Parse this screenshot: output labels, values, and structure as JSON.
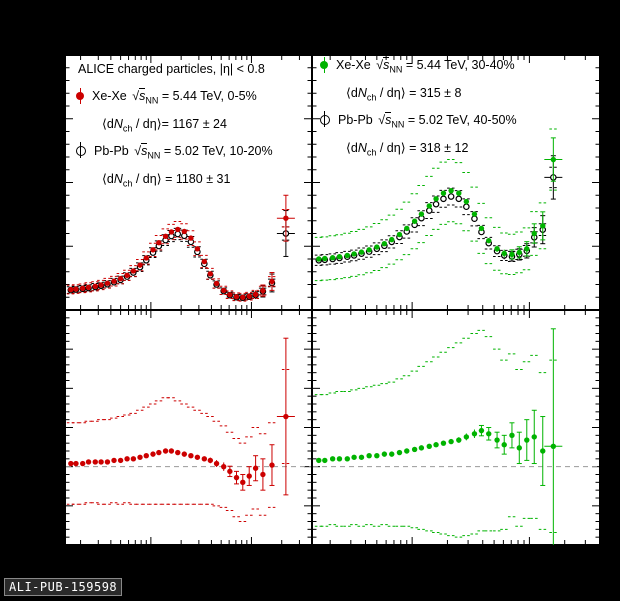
{
  "page": {
    "footer_label": "ALI-PUB-159598"
  },
  "colors": {
    "xexe_central": "#cc0000",
    "xexe_midcentral": "#00b300",
    "pbpb": "#000000",
    "panel_background": "#ffffff",
    "figure_background": "#000000",
    "refline": "#999999"
  },
  "legend_left": {
    "title": "ALICE charged particles, |η| < 0.8",
    "items": [
      {
        "marker": "xexe-red",
        "pre": "Xe-Xe ",
        "rad": "√",
        "svar": "s",
        "sub": "NN",
        "post": " = 5.44 TeV, 0-5%"
      },
      {
        "pre": "⟨d",
        "nvar": "N",
        "sub": "ch",
        "post": " / dη⟩= 1167 ± 24"
      },
      {
        "marker": "pbpb-open",
        "pre": "Pb-Pb ",
        "rad": "√",
        "svar": "s",
        "sub": "NN",
        "post": " = 5.02 TeV, 10-20%"
      },
      {
        "pre": "⟨d",
        "nvar": "N",
        "sub": "ch",
        "post": " / dη⟩ = 1180 ± 31"
      }
    ]
  },
  "legend_right": {
    "items": [
      {
        "marker": "xexe-green",
        "pre": "Xe-Xe ",
        "rad": "√",
        "svar": "s",
        "sub": "NN",
        "post": " = 5.44 TeV, 30-40%"
      },
      {
        "pre": "⟨d",
        "nvar": "N",
        "sub": "ch",
        "post": " / dη⟩ = 315 ± 8"
      },
      {
        "marker": "pbpb-open",
        "pre": "Pb-Pb ",
        "rad": "√",
        "svar": "s",
        "sub": "NN",
        "post": " = 5.02 TeV, 40-50%"
      },
      {
        "pre": "⟨d",
        "nvar": "N",
        "sub": "ch",
        "post": " / dη⟩ = 318 ± 12"
      }
    ]
  },
  "chart_data": [
    {
      "id": "top-left",
      "type": "scatter",
      "title": "",
      "xlabel": "",
      "ylabel": "",
      "xscale": "log",
      "xlim": [
        0.14,
        40
      ],
      "ylim": [
        0,
        1
      ],
      "yticks": {
        "minor": 0.05,
        "major": 0.25
      },
      "grid": false,
      "refline": null,
      "series": [
        {
          "name": "Xe-Xe 5.44 TeV 0-5%",
          "marker": "filled",
          "color": "#cc0000",
          "x": [
            0.16,
            0.18,
            0.21,
            0.24,
            0.28,
            0.32,
            0.37,
            0.43,
            0.5,
            0.58,
            0.67,
            0.78,
            0.9,
            1.05,
            1.2,
            1.4,
            1.6,
            1.85,
            2.15,
            2.5,
            2.9,
            3.4,
            3.9,
            4.5,
            5.3,
            6.1,
            7.1,
            8.2,
            9.5,
            11,
            13,
            16,
            22
          ],
          "y": [
            0.08,
            0.082,
            0.085,
            0.089,
            0.093,
            0.098,
            0.105,
            0.113,
            0.123,
            0.136,
            0.153,
            0.176,
            0.204,
            0.236,
            0.264,
            0.289,
            0.306,
            0.316,
            0.308,
            0.282,
            0.24,
            0.19,
            0.142,
            0.104,
            0.077,
            0.06,
            0.052,
            0.05,
            0.054,
            0.061,
            0.076,
            0.112,
            0.36
          ],
          "yerr": [
            0.004,
            0.004,
            0.004,
            0.004,
            0.004,
            0.004,
            0.004,
            0.004,
            0.004,
            0.004,
            0.004,
            0.004,
            0.004,
            0.004,
            0.004,
            0.004,
            0.004,
            0.004,
            0.004,
            0.004,
            0.004,
            0.004,
            0.004,
            0.004,
            0.005,
            0.006,
            0.007,
            0.009,
            0.012,
            0.016,
            0.022,
            0.035,
            0.09
          ],
          "sys": [
            0.017,
            0.017,
            0.017,
            0.018,
            0.018,
            0.018,
            0.019,
            0.019,
            0.02,
            0.02,
            0.021,
            0.022,
            0.024,
            0.026,
            0.028,
            0.029,
            0.03,
            0.031,
            0.03,
            0.029,
            0.027,
            0.024,
            0.021,
            0.018,
            0.016,
            0.015,
            0.015,
            0.015,
            0.015,
            0.016,
            0.017,
            0.019,
            0.034
          ]
        },
        {
          "name": "Pb-Pb 5.02 TeV 10-20%",
          "marker": "open",
          "color": "#000000",
          "x": [
            0.16,
            0.18,
            0.21,
            0.24,
            0.28,
            0.32,
            0.37,
            0.43,
            0.5,
            0.58,
            0.67,
            0.78,
            0.9,
            1.05,
            1.2,
            1.4,
            1.6,
            1.85,
            2.15,
            2.5,
            2.9,
            3.4,
            3.9,
            4.5,
            5.3,
            6.1,
            7.1,
            8.2,
            9.5,
            11,
            13,
            16,
            22
          ],
          "y": [
            0.078,
            0.08,
            0.083,
            0.086,
            0.09,
            0.095,
            0.101,
            0.109,
            0.118,
            0.131,
            0.147,
            0.168,
            0.195,
            0.225,
            0.251,
            0.274,
            0.29,
            0.298,
            0.291,
            0.267,
            0.228,
            0.181,
            0.136,
            0.1,
            0.074,
            0.058,
            0.05,
            0.048,
            0.052,
            0.059,
            0.073,
            0.106,
            0.3
          ],
          "yerr": [
            0.004,
            0.004,
            0.004,
            0.004,
            0.004,
            0.004,
            0.004,
            0.004,
            0.004,
            0.004,
            0.004,
            0.004,
            0.004,
            0.004,
            0.004,
            0.004,
            0.004,
            0.004,
            0.004,
            0.004,
            0.004,
            0.004,
            0.004,
            0.004,
            0.005,
            0.006,
            0.007,
            0.009,
            0.012,
            0.016,
            0.022,
            0.035,
            0.09
          ],
          "sys": [
            0.013,
            0.013,
            0.013,
            0.013,
            0.014,
            0.014,
            0.014,
            0.015,
            0.015,
            0.015,
            0.016,
            0.017,
            0.018,
            0.019,
            0.02,
            0.021,
            0.022,
            0.022,
            0.022,
            0.021,
            0.02,
            0.018,
            0.016,
            0.014,
            0.013,
            0.012,
            0.012,
            0.012,
            0.012,
            0.013,
            0.013,
            0.015,
            0.026
          ]
        }
      ]
    },
    {
      "id": "top-right",
      "type": "scatter",
      "title": "",
      "xlabel": "",
      "ylabel": "",
      "xscale": "log",
      "xlim": [
        0.14,
        40
      ],
      "ylim": [
        0,
        1
      ],
      "yticks": {
        "minor": 0.05,
        "major": 0.25
      },
      "grid": false,
      "refline": null,
      "series": [
        {
          "name": "Xe-Xe 5.44 TeV 30-40%",
          "marker": "filled",
          "color": "#00b300",
          "x": [
            0.16,
            0.18,
            0.21,
            0.24,
            0.28,
            0.32,
            0.37,
            0.43,
            0.5,
            0.58,
            0.67,
            0.78,
            0.9,
            1.05,
            1.2,
            1.4,
            1.6,
            1.85,
            2.15,
            2.5,
            2.9,
            3.4,
            3.9,
            4.5,
            5.3,
            6.1,
            7.1,
            8.2,
            9.5,
            11,
            13,
            16
          ],
          "y": [
            0.2,
            0.202,
            0.205,
            0.209,
            0.214,
            0.22,
            0.227,
            0.236,
            0.247,
            0.26,
            0.276,
            0.296,
            0.32,
            0.348,
            0.376,
            0.408,
            0.436,
            0.458,
            0.468,
            0.458,
            0.425,
            0.376,
            0.32,
            0.272,
            0.24,
            0.222,
            0.218,
            0.226,
            0.24,
            0.3,
            0.33,
            0.59
          ],
          "yerr": [
            0.005,
            0.005,
            0.005,
            0.005,
            0.005,
            0.005,
            0.005,
            0.005,
            0.005,
            0.005,
            0.005,
            0.005,
            0.005,
            0.005,
            0.005,
            0.005,
            0.005,
            0.005,
            0.005,
            0.005,
            0.005,
            0.005,
            0.007,
            0.009,
            0.012,
            0.015,
            0.018,
            0.022,
            0.028,
            0.038,
            0.055,
            0.085
          ],
          "sys": [
            0.085,
            0.085,
            0.086,
            0.086,
            0.087,
            0.088,
            0.089,
            0.09,
            0.092,
            0.094,
            0.096,
            0.099,
            0.103,
            0.108,
            0.112,
            0.116,
            0.12,
            0.122,
            0.122,
            0.12,
            0.114,
            0.106,
            0.098,
            0.09,
            0.084,
            0.08,
            0.079,
            0.08,
            0.082,
            0.086,
            0.09,
            0.12
          ]
        },
        {
          "name": "Pb-Pb 5.02 TeV 40-50%",
          "marker": "open",
          "color": "#000000",
          "x": [
            0.16,
            0.18,
            0.21,
            0.24,
            0.28,
            0.32,
            0.37,
            0.43,
            0.5,
            0.58,
            0.67,
            0.78,
            0.9,
            1.05,
            1.2,
            1.4,
            1.6,
            1.85,
            2.15,
            2.5,
            2.9,
            3.4,
            3.9,
            4.5,
            5.3,
            6.1,
            7.1,
            8.2,
            9.5,
            11,
            13,
            16
          ],
          "y": [
            0.195,
            0.197,
            0.2,
            0.204,
            0.209,
            0.214,
            0.221,
            0.229,
            0.24,
            0.252,
            0.267,
            0.286,
            0.308,
            0.334,
            0.36,
            0.39,
            0.415,
            0.436,
            0.445,
            0.436,
            0.405,
            0.358,
            0.306,
            0.262,
            0.231,
            0.214,
            0.21,
            0.218,
            0.232,
            0.285,
            0.315,
            0.52
          ],
          "yerr": [
            0.005,
            0.005,
            0.005,
            0.005,
            0.005,
            0.005,
            0.005,
            0.005,
            0.005,
            0.005,
            0.005,
            0.005,
            0.005,
            0.005,
            0.005,
            0.005,
            0.005,
            0.005,
            0.005,
            0.005,
            0.005,
            0.005,
            0.007,
            0.009,
            0.012,
            0.015,
            0.018,
            0.022,
            0.028,
            0.038,
            0.055,
            0.085
          ],
          "sys": [
            0.02,
            0.02,
            0.02,
            0.021,
            0.021,
            0.021,
            0.022,
            0.022,
            0.023,
            0.023,
            0.024,
            0.025,
            0.026,
            0.028,
            0.029,
            0.031,
            0.032,
            0.033,
            0.033,
            0.032,
            0.031,
            0.028,
            0.026,
            0.023,
            0.021,
            0.02,
            0.02,
            0.02,
            0.021,
            0.022,
            0.023,
            0.04
          ]
        }
      ]
    },
    {
      "id": "bottom-left-ratio",
      "type": "scatter",
      "title": "",
      "xlabel": "",
      "ylabel": "",
      "xscale": "log",
      "xlim": [
        0.14,
        40
      ],
      "ylim": [
        0.5,
        2.0
      ],
      "yticks": {
        "minor": 0.05,
        "major": 0.25
      },
      "grid": false,
      "refline": 1.0,
      "series": [
        {
          "name": "ratio Xe-Xe 0-5% / Pb-Pb 10-20%",
          "marker": "filled",
          "color": "#cc0000",
          "x": [
            0.16,
            0.18,
            0.21,
            0.24,
            0.28,
            0.32,
            0.37,
            0.43,
            0.5,
            0.58,
            0.67,
            0.78,
            0.9,
            1.05,
            1.2,
            1.4,
            1.6,
            1.85,
            2.15,
            2.5,
            2.9,
            3.4,
            3.9,
            4.5,
            5.3,
            6.1,
            7.1,
            8.2,
            9.5,
            11,
            13,
            16,
            22
          ],
          "y": [
            1.02,
            1.02,
            1.02,
            1.03,
            1.03,
            1.03,
            1.03,
            1.04,
            1.04,
            1.05,
            1.05,
            1.06,
            1.07,
            1.08,
            1.09,
            1.1,
            1.1,
            1.09,
            1.08,
            1.07,
            1.06,
            1.05,
            1.04,
            1.02,
            1.0,
            0.97,
            0.93,
            0.9,
            0.94,
            0.99,
            0.95,
            1.01,
            1.32
          ],
          "yerr": [
            0.01,
            0.01,
            0.01,
            0.01,
            0.01,
            0.01,
            0.01,
            0.01,
            0.01,
            0.01,
            0.01,
            0.01,
            0.01,
            0.01,
            0.01,
            0.01,
            0.01,
            0.01,
            0.01,
            0.01,
            0.012,
            0.015,
            0.018,
            0.022,
            0.027,
            0.033,
            0.04,
            0.05,
            0.06,
            0.08,
            0.1,
            0.13,
            0.5
          ],
          "sys": [
            0.26,
            0.26,
            0.26,
            0.26,
            0.26,
            0.27,
            0.27,
            0.27,
            0.28,
            0.28,
            0.29,
            0.3,
            0.31,
            0.32,
            0.33,
            0.34,
            0.34,
            0.33,
            0.32,
            0.31,
            0.3,
            0.29,
            0.28,
            0.27,
            0.26,
            0.25,
            0.25,
            0.25,
            0.25,
            0.26,
            0.26,
            0.27,
            0.3
          ]
        }
      ]
    },
    {
      "id": "bottom-right-ratio",
      "type": "scatter",
      "title": "",
      "xlabel": "",
      "ylabel": "",
      "xscale": "log",
      "xlim": [
        0.14,
        40
      ],
      "ylim": [
        0.5,
        2.0
      ],
      "yticks": {
        "minor": 0.05,
        "major": 0.25
      },
      "grid": false,
      "refline": 1.0,
      "series": [
        {
          "name": "ratio Xe-Xe 30-40% / Pb-Pb 40-50%",
          "marker": "filled",
          "color": "#00b300",
          "x": [
            0.16,
            0.18,
            0.21,
            0.24,
            0.28,
            0.32,
            0.37,
            0.43,
            0.5,
            0.58,
            0.67,
            0.78,
            0.9,
            1.05,
            1.2,
            1.4,
            1.6,
            1.85,
            2.15,
            2.5,
            2.9,
            3.4,
            3.9,
            4.5,
            5.3,
            6.1,
            7.1,
            8.2,
            9.5,
            11,
            13,
            16
          ],
          "y": [
            1.04,
            1.04,
            1.05,
            1.05,
            1.05,
            1.06,
            1.06,
            1.07,
            1.07,
            1.08,
            1.08,
            1.09,
            1.1,
            1.11,
            1.12,
            1.13,
            1.14,
            1.15,
            1.16,
            1.17,
            1.19,
            1.21,
            1.23,
            1.21,
            1.17,
            1.14,
            1.2,
            1.12,
            1.17,
            1.19,
            1.1,
            1.13
          ],
          "yerr": [
            0.012,
            0.012,
            0.012,
            0.012,
            0.012,
            0.012,
            0.012,
            0.012,
            0.012,
            0.012,
            0.012,
            0.012,
            0.012,
            0.012,
            0.012,
            0.012,
            0.012,
            0.012,
            0.015,
            0.018,
            0.022,
            0.027,
            0.033,
            0.04,
            0.05,
            0.06,
            0.08,
            0.1,
            0.13,
            0.17,
            0.22,
            0.75
          ],
          "sys": [
            0.42,
            0.42,
            0.42,
            0.43,
            0.43,
            0.43,
            0.44,
            0.44,
            0.45,
            0.45,
            0.46,
            0.47,
            0.48,
            0.5,
            0.52,
            0.54,
            0.56,
            0.58,
            0.6,
            0.62,
            0.63,
            0.64,
            0.64,
            0.62,
            0.58,
            0.54,
            0.52,
            0.5,
            0.5,
            0.52,
            0.5,
            0.55
          ]
        }
      ]
    }
  ]
}
